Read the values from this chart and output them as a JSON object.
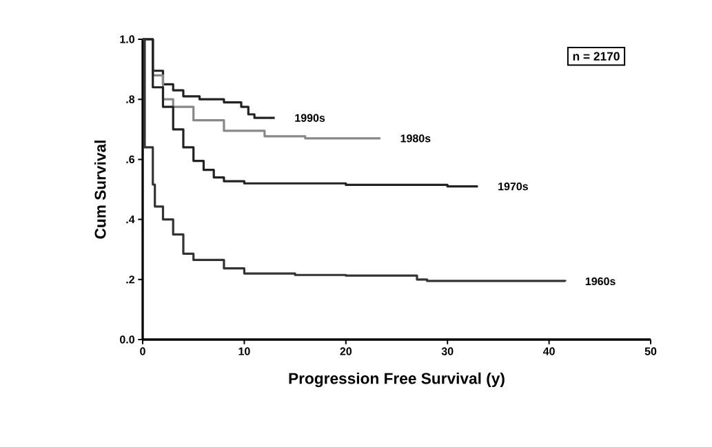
{
  "chart_data": {
    "type": "step",
    "xlabel": "Progression Free Survival (y)",
    "ylabel": "Cum Survival",
    "annotations": [
      "n = 2170"
    ],
    "xlim": [
      0,
      50
    ],
    "xticks": [
      0,
      10,
      20,
      30,
      40,
      50
    ],
    "ylim": [
      0,
      1
    ],
    "yticks": [
      {
        "value": 0,
        "label": "0.0"
      },
      {
        "value": 0.2,
        "label": ".2"
      },
      {
        "value": 0.4,
        "label": ".4"
      },
      {
        "value": 0.6,
        "label": ".6"
      },
      {
        "value": 0.8,
        "label": ".8"
      },
      {
        "value": 1,
        "label": "1.0"
      }
    ],
    "grid": false,
    "legend": false,
    "series": [
      {
        "name": "1990s",
        "color": "#222222",
        "x": [
          0,
          1,
          2,
          3,
          4,
          5.6,
          8,
          9.7,
          10.4,
          11,
          13
        ],
        "values": [
          1,
          0.895,
          0.85,
          0.83,
          0.81,
          0.8,
          0.79,
          0.775,
          0.75,
          0.738,
          0.738
        ]
      },
      {
        "name": "1980s",
        "color": "#888888",
        "x": [
          0,
          1,
          2,
          3,
          5,
          8,
          12,
          16,
          23.4
        ],
        "values": [
          1,
          0.88,
          0.8,
          0.775,
          0.73,
          0.695,
          0.677,
          0.67,
          0.67
        ]
      },
      {
        "name": "1970s",
        "color": "#222222",
        "x": [
          0,
          1,
          2,
          3,
          4,
          5,
          6,
          7,
          8,
          10,
          20,
          30,
          33
        ],
        "values": [
          1,
          0.84,
          0.775,
          0.7,
          0.64,
          0.595,
          0.565,
          0.54,
          0.527,
          0.52,
          0.515,
          0.51,
          0.51
        ]
      },
      {
        "name": "1960s",
        "color": "#333333",
        "x": [
          0,
          0.2,
          1,
          1.2,
          2,
          3,
          4,
          5,
          7,
          8,
          10,
          15,
          20,
          22,
          27,
          28,
          41.6
        ],
        "values": [
          1,
          0.64,
          0.516,
          0.443,
          0.4,
          0.35,
          0.286,
          0.265,
          0.265,
          0.237,
          0.22,
          0.215,
          0.213,
          0.213,
          0.2,
          0.195,
          0.194
        ]
      }
    ]
  }
}
